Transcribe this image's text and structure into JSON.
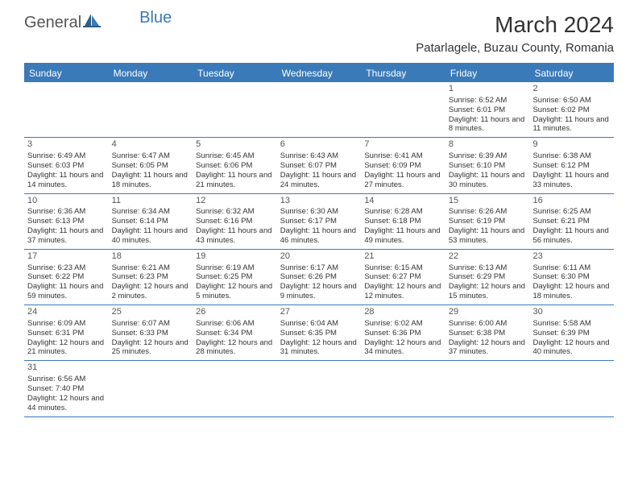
{
  "logo": {
    "text1": "General",
    "text2": "Blue"
  },
  "title": "March 2024",
  "location": "Patarlagele, Buzau County, Romania",
  "colors": {
    "accent": "#3a7ab8",
    "text": "#333333",
    "bg": "#ffffff"
  },
  "dayNames": [
    "Sunday",
    "Monday",
    "Tuesday",
    "Wednesday",
    "Thursday",
    "Friday",
    "Saturday"
  ],
  "weeks": [
    [
      null,
      null,
      null,
      null,
      null,
      {
        "n": "1",
        "sr": "Sunrise: 6:52 AM",
        "ss": "Sunset: 6:01 PM",
        "dl": "Daylight: 11 hours and 8 minutes."
      },
      {
        "n": "2",
        "sr": "Sunrise: 6:50 AM",
        "ss": "Sunset: 6:02 PM",
        "dl": "Daylight: 11 hours and 11 minutes."
      }
    ],
    [
      {
        "n": "3",
        "sr": "Sunrise: 6:49 AM",
        "ss": "Sunset: 6:03 PM",
        "dl": "Daylight: 11 hours and 14 minutes."
      },
      {
        "n": "4",
        "sr": "Sunrise: 6:47 AM",
        "ss": "Sunset: 6:05 PM",
        "dl": "Daylight: 11 hours and 18 minutes."
      },
      {
        "n": "5",
        "sr": "Sunrise: 6:45 AM",
        "ss": "Sunset: 6:06 PM",
        "dl": "Daylight: 11 hours and 21 minutes."
      },
      {
        "n": "6",
        "sr": "Sunrise: 6:43 AM",
        "ss": "Sunset: 6:07 PM",
        "dl": "Daylight: 11 hours and 24 minutes."
      },
      {
        "n": "7",
        "sr": "Sunrise: 6:41 AM",
        "ss": "Sunset: 6:09 PM",
        "dl": "Daylight: 11 hours and 27 minutes."
      },
      {
        "n": "8",
        "sr": "Sunrise: 6:39 AM",
        "ss": "Sunset: 6:10 PM",
        "dl": "Daylight: 11 hours and 30 minutes."
      },
      {
        "n": "9",
        "sr": "Sunrise: 6:38 AM",
        "ss": "Sunset: 6:12 PM",
        "dl": "Daylight: 11 hours and 33 minutes."
      }
    ],
    [
      {
        "n": "10",
        "sr": "Sunrise: 6:36 AM",
        "ss": "Sunset: 6:13 PM",
        "dl": "Daylight: 11 hours and 37 minutes."
      },
      {
        "n": "11",
        "sr": "Sunrise: 6:34 AM",
        "ss": "Sunset: 6:14 PM",
        "dl": "Daylight: 11 hours and 40 minutes."
      },
      {
        "n": "12",
        "sr": "Sunrise: 6:32 AM",
        "ss": "Sunset: 6:16 PM",
        "dl": "Daylight: 11 hours and 43 minutes."
      },
      {
        "n": "13",
        "sr": "Sunrise: 6:30 AM",
        "ss": "Sunset: 6:17 PM",
        "dl": "Daylight: 11 hours and 46 minutes."
      },
      {
        "n": "14",
        "sr": "Sunrise: 6:28 AM",
        "ss": "Sunset: 6:18 PM",
        "dl": "Daylight: 11 hours and 49 minutes."
      },
      {
        "n": "15",
        "sr": "Sunrise: 6:26 AM",
        "ss": "Sunset: 6:19 PM",
        "dl": "Daylight: 11 hours and 53 minutes."
      },
      {
        "n": "16",
        "sr": "Sunrise: 6:25 AM",
        "ss": "Sunset: 6:21 PM",
        "dl": "Daylight: 11 hours and 56 minutes."
      }
    ],
    [
      {
        "n": "17",
        "sr": "Sunrise: 6:23 AM",
        "ss": "Sunset: 6:22 PM",
        "dl": "Daylight: 11 hours and 59 minutes."
      },
      {
        "n": "18",
        "sr": "Sunrise: 6:21 AM",
        "ss": "Sunset: 6:23 PM",
        "dl": "Daylight: 12 hours and 2 minutes."
      },
      {
        "n": "19",
        "sr": "Sunrise: 6:19 AM",
        "ss": "Sunset: 6:25 PM",
        "dl": "Daylight: 12 hours and 5 minutes."
      },
      {
        "n": "20",
        "sr": "Sunrise: 6:17 AM",
        "ss": "Sunset: 6:26 PM",
        "dl": "Daylight: 12 hours and 9 minutes."
      },
      {
        "n": "21",
        "sr": "Sunrise: 6:15 AM",
        "ss": "Sunset: 6:27 PM",
        "dl": "Daylight: 12 hours and 12 minutes."
      },
      {
        "n": "22",
        "sr": "Sunrise: 6:13 AM",
        "ss": "Sunset: 6:29 PM",
        "dl": "Daylight: 12 hours and 15 minutes."
      },
      {
        "n": "23",
        "sr": "Sunrise: 6:11 AM",
        "ss": "Sunset: 6:30 PM",
        "dl": "Daylight: 12 hours and 18 minutes."
      }
    ],
    [
      {
        "n": "24",
        "sr": "Sunrise: 6:09 AM",
        "ss": "Sunset: 6:31 PM",
        "dl": "Daylight: 12 hours and 21 minutes."
      },
      {
        "n": "25",
        "sr": "Sunrise: 6:07 AM",
        "ss": "Sunset: 6:33 PM",
        "dl": "Daylight: 12 hours and 25 minutes."
      },
      {
        "n": "26",
        "sr": "Sunrise: 6:06 AM",
        "ss": "Sunset: 6:34 PM",
        "dl": "Daylight: 12 hours and 28 minutes."
      },
      {
        "n": "27",
        "sr": "Sunrise: 6:04 AM",
        "ss": "Sunset: 6:35 PM",
        "dl": "Daylight: 12 hours and 31 minutes."
      },
      {
        "n": "28",
        "sr": "Sunrise: 6:02 AM",
        "ss": "Sunset: 6:36 PM",
        "dl": "Daylight: 12 hours and 34 minutes."
      },
      {
        "n": "29",
        "sr": "Sunrise: 6:00 AM",
        "ss": "Sunset: 6:38 PM",
        "dl": "Daylight: 12 hours and 37 minutes."
      },
      {
        "n": "30",
        "sr": "Sunrise: 5:58 AM",
        "ss": "Sunset: 6:39 PM",
        "dl": "Daylight: 12 hours and 40 minutes."
      }
    ],
    [
      {
        "n": "31",
        "sr": "Sunrise: 6:56 AM",
        "ss": "Sunset: 7:40 PM",
        "dl": "Daylight: 12 hours and 44 minutes."
      },
      null,
      null,
      null,
      null,
      null,
      null
    ]
  ]
}
